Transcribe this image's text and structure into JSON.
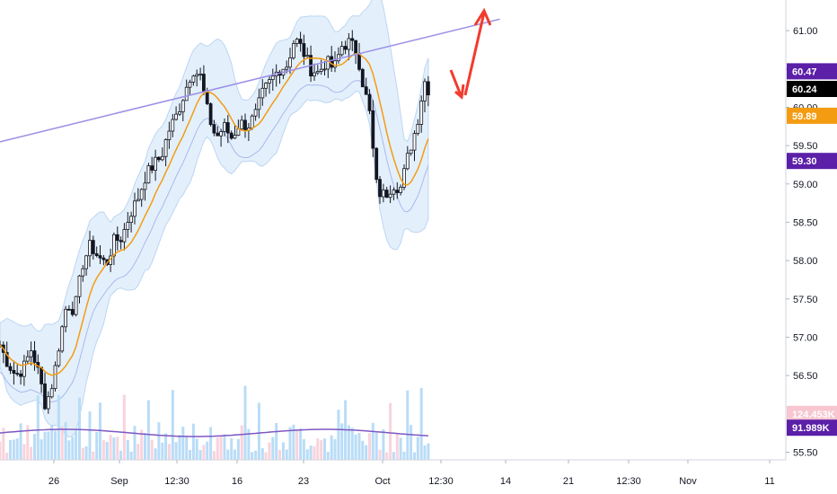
{
  "chart_data": {
    "type": "candlestick",
    "title": "",
    "y_ticks": [
      "61.00",
      "60.50",
      "60.00",
      "59.50",
      "59.00",
      "58.50",
      "58.00",
      "57.50",
      "57.00",
      "56.50",
      "55.50"
    ],
    "x_ticks": [
      "26",
      "Sep",
      "12:30",
      "16",
      "23",
      "Oct",
      "12:30",
      "14",
      "21",
      "12:30",
      "Nov",
      "11"
    ],
    "ylim": [
      55.4,
      61.4
    ],
    "price_tags": [
      {
        "label": "60.47",
        "value": 60.47,
        "color": "#5b1fa8"
      },
      {
        "label": "60.24",
        "value": 60.24,
        "color": "#000000"
      },
      {
        "label": "59.89",
        "value": 59.89,
        "color": "#f39c12"
      },
      {
        "label": "59.30",
        "value": 59.3,
        "color": "#5b1fa8"
      },
      {
        "label": "124.453K",
        "value": 56.0,
        "color": "#f7c6d0"
      },
      {
        "label": "91.989K",
        "value": 55.82,
        "color": "#5b1fa8"
      }
    ],
    "price_path": [
      [
        0,
        56.9
      ],
      [
        0.008,
        56.7
      ],
      [
        0.02,
        56.5
      ],
      [
        0.03,
        56.6
      ],
      [
        0.04,
        56.85
      ],
      [
        0.05,
        56.5
      ],
      [
        0.058,
        56.1
      ],
      [
        0.068,
        56.45
      ],
      [
        0.075,
        56.9
      ],
      [
        0.085,
        57.45
      ],
      [
        0.095,
        57.35
      ],
      [
        0.105,
        57.95
      ],
      [
        0.115,
        58.2
      ],
      [
        0.125,
        58.05
      ],
      [
        0.135,
        57.95
      ],
      [
        0.145,
        58.25
      ],
      [
        0.155,
        58.3
      ],
      [
        0.165,
        58.6
      ],
      [
        0.175,
        58.8
      ],
      [
        0.185,
        59.1
      ],
      [
        0.195,
        59.25
      ],
      [
        0.205,
        59.35
      ],
      [
        0.215,
        59.7
      ],
      [
        0.225,
        59.9
      ],
      [
        0.235,
        60.2
      ],
      [
        0.245,
        60.5
      ],
      [
        0.255,
        60.4
      ],
      [
        0.265,
        59.9
      ],
      [
        0.275,
        59.6
      ],
      [
        0.285,
        59.75
      ],
      [
        0.295,
        59.6
      ],
      [
        0.305,
        59.8
      ],
      [
        0.315,
        59.75
      ],
      [
        0.325,
        59.9
      ],
      [
        0.335,
        60.2
      ],
      [
        0.345,
        60.35
      ],
      [
        0.355,
        60.5
      ],
      [
        0.365,
        60.55
      ],
      [
        0.375,
        60.9
      ],
      [
        0.385,
        60.75
      ],
      [
        0.395,
        60.5
      ],
      [
        0.405,
        60.45
      ],
      [
        0.415,
        60.6
      ],
      [
        0.425,
        60.5
      ],
      [
        0.435,
        60.8
      ],
      [
        0.445,
        60.85
      ],
      [
        0.455,
        60.7
      ],
      [
        0.462,
        60.3
      ],
      [
        0.47,
        59.95
      ],
      [
        0.475,
        59.4
      ],
      [
        0.48,
        58.9
      ],
      [
        0.49,
        58.85
      ],
      [
        0.5,
        59.0
      ],
      [
        0.51,
        58.95
      ],
      [
        0.52,
        59.4
      ],
      [
        0.53,
        59.75
      ],
      [
        0.54,
        60.35
      ],
      [
        0.545,
        60.24
      ]
    ],
    "trendline": {
      "from": [
        0,
        59.55
      ],
      "to": [
        0.636,
        61.15
      ],
      "color": "#9b8fe6"
    },
    "bb_color": "#cfe3f7",
    "ma_color": "#f39c12",
    "volume_ma_color": "#7e57c2",
    "arrows_color": "#f23b2e"
  }
}
